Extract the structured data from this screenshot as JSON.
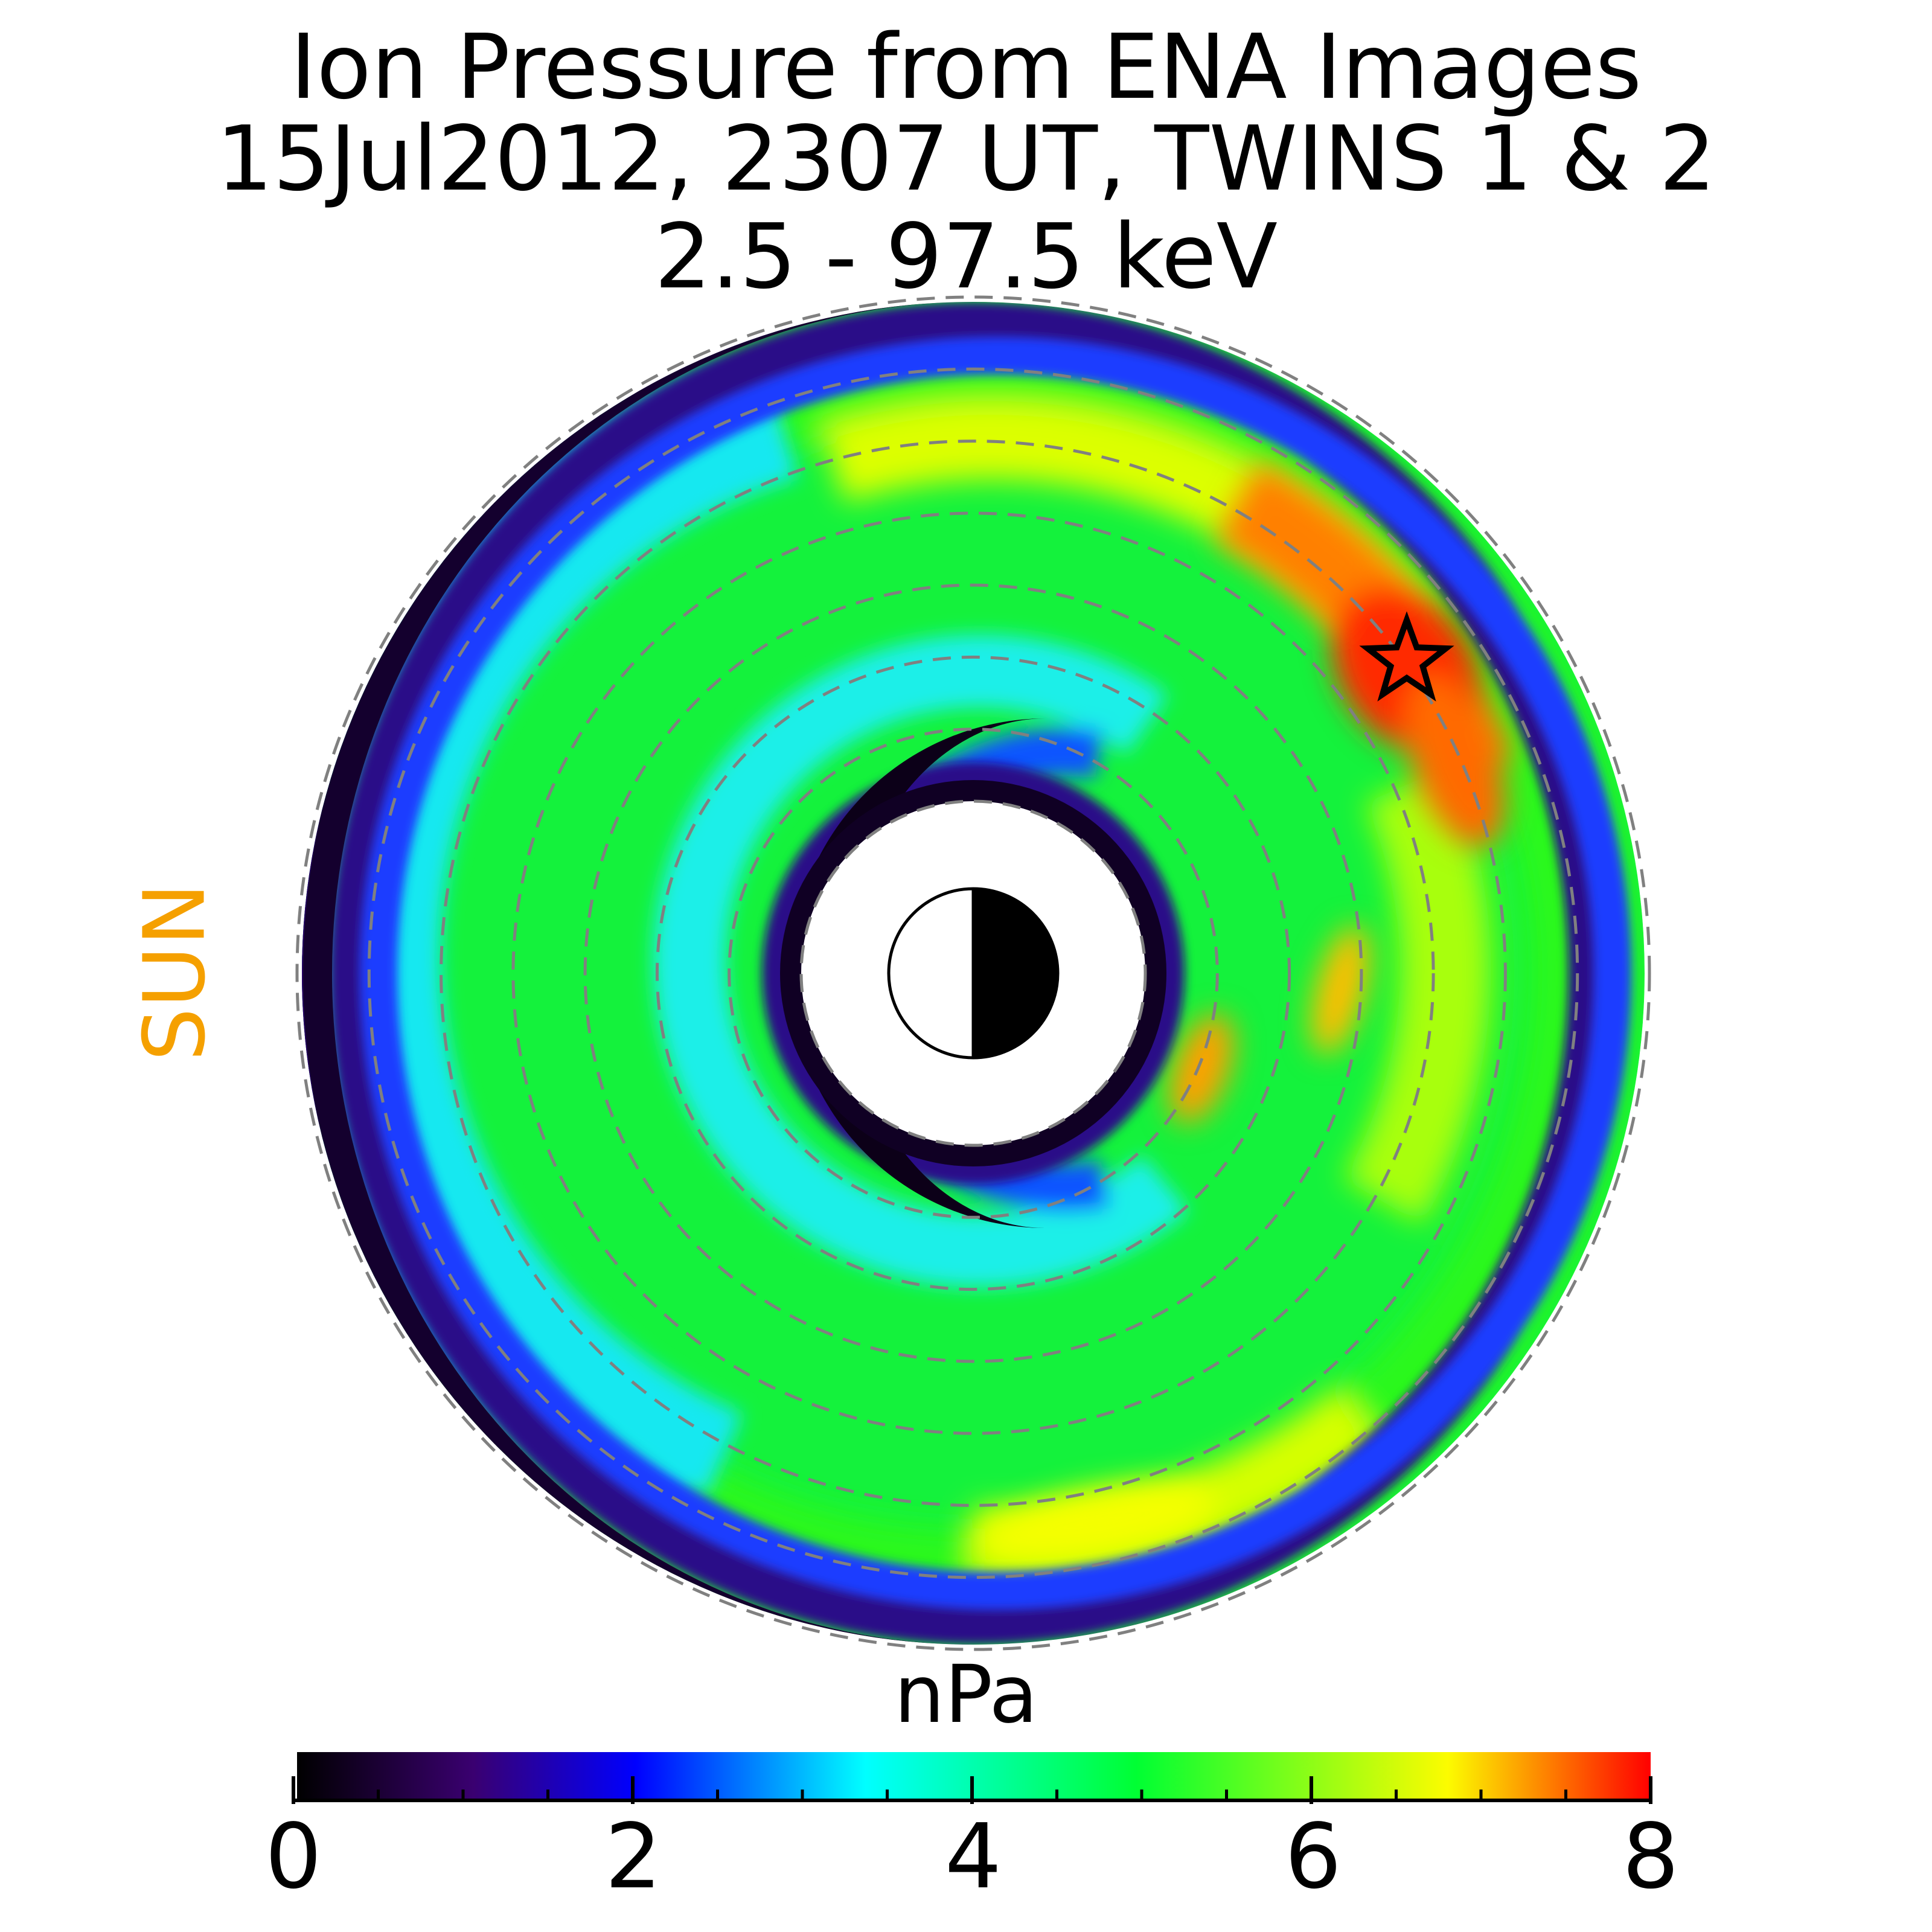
{
  "title_lines": [
    "Ion Pressure from  ENA Images",
    "15Jul2012, 2307 UT,  TWINS 1 & 2",
    "2.5 - 97.5 keV"
  ],
  "sun_label": "SUN",
  "sun_label_color": "#f5a000",
  "colorbar": {
    "label": "nPa",
    "min": 0,
    "max": 8,
    "ticks": [
      "0",
      "2",
      "4",
      "6",
      "8"
    ],
    "minor_step": 0.5,
    "colors": [
      "#000000",
      "#3a0070",
      "#0000ff",
      "#00ffff",
      "#00ff33",
      "#fcfc00",
      "#ff0000"
    ],
    "stops": [
      0,
      0.13,
      0.25,
      0.42,
      0.62,
      0.85,
      1.0
    ]
  },
  "chart_data": {
    "type": "heatmap",
    "projection": "polar",
    "colorscale": "rainbow",
    "value_range": [
      0,
      8
    ],
    "units": "nPa",
    "sun_direction": "left",
    "dashed_rings": 8,
    "blank_center": true,
    "features": [
      {
        "name": "peak",
        "value": 7.7,
        "marker": "star",
        "location": "upper-right, dusk/post-midnight side"
      },
      {
        "name": "secondary enhancements",
        "value": 6.5,
        "location": "right of Earth, inner rings"
      },
      {
        "name": "lower ring enhancement",
        "value": 6.2,
        "location": "bottom"
      },
      {
        "name": "inner depletion",
        "value": 0.3,
        "location": "around Earth"
      },
      {
        "name": "outer edge",
        "value": 0.4,
        "location": "outermost annulus, darkest on the left"
      }
    ]
  }
}
